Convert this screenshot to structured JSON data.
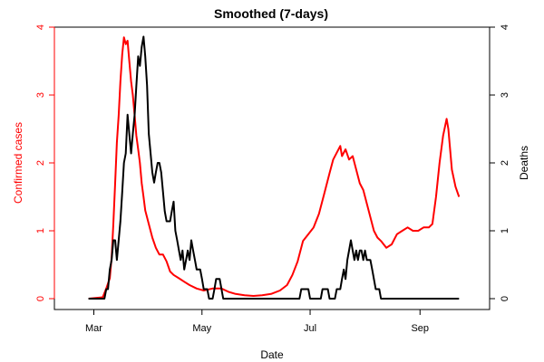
{
  "chart_data": {
    "type": "line",
    "title": "Smoothed (7-days)",
    "xlabel": "Date",
    "ylabel_left": "Confirmed cases",
    "ylabel_right": "Deaths",
    "x_ticks": [
      "Mar",
      "May",
      "Jul",
      "Sep"
    ],
    "x_tick_dates": [
      "2020-03-01",
      "2020-05-01",
      "2020-07-01",
      "2020-09-01"
    ],
    "x_range": [
      "2020-02-19",
      "2020-09-29"
    ],
    "ylim_left": [
      0,
      4
    ],
    "ylim_right": [
      0,
      4
    ],
    "yticks_left": [
      "0",
      "1",
      "2",
      "3",
      "4"
    ],
    "yticks_right": [
      "0",
      "1",
      "2",
      "3",
      "4"
    ],
    "colors": {
      "confirmed": "#ff0000",
      "deaths": "#000000",
      "axis_left": "#ff0000",
      "axis_right": "#000000"
    },
    "series": [
      {
        "name": "Confirmed cases",
        "axis": "left",
        "points": [
          [
            "2020-02-27",
            0
          ],
          [
            "2020-03-06",
            0.02
          ],
          [
            "2020-03-08",
            0.15
          ],
          [
            "2020-03-10",
            0.3
          ],
          [
            "2020-03-11",
            0.6
          ],
          [
            "2020-03-12",
            1.1
          ],
          [
            "2020-03-13",
            1.7
          ],
          [
            "2020-03-14",
            2.3
          ],
          [
            "2020-03-15",
            2.7
          ],
          [
            "2020-03-16",
            3.2
          ],
          [
            "2020-03-17",
            3.6
          ],
          [
            "2020-03-18",
            3.85
          ],
          [
            "2020-03-19",
            3.75
          ],
          [
            "2020-03-20",
            3.8
          ],
          [
            "2020-03-21",
            3.5
          ],
          [
            "2020-03-22",
            3.2
          ],
          [
            "2020-03-23",
            3.0
          ],
          [
            "2020-03-24",
            2.7
          ],
          [
            "2020-03-25",
            2.4
          ],
          [
            "2020-03-26",
            2.2
          ],
          [
            "2020-03-27",
            2.0
          ],
          [
            "2020-03-28",
            1.7
          ],
          [
            "2020-03-29",
            1.5
          ],
          [
            "2020-03-30",
            1.3
          ],
          [
            "2020-04-01",
            1.1
          ],
          [
            "2020-04-03",
            0.9
          ],
          [
            "2020-04-05",
            0.75
          ],
          [
            "2020-04-07",
            0.65
          ],
          [
            "2020-04-09",
            0.65
          ],
          [
            "2020-04-11",
            0.55
          ],
          [
            "2020-04-13",
            0.4
          ],
          [
            "2020-04-15",
            0.35
          ],
          [
            "2020-04-18",
            0.3
          ],
          [
            "2020-04-21",
            0.25
          ],
          [
            "2020-04-24",
            0.2
          ],
          [
            "2020-04-28",
            0.15
          ],
          [
            "2020-05-02",
            0.12
          ],
          [
            "2020-05-07",
            0.15
          ],
          [
            "2020-05-12",
            0.15
          ],
          [
            "2020-05-16",
            0.1
          ],
          [
            "2020-05-20",
            0.07
          ],
          [
            "2020-05-25",
            0.05
          ],
          [
            "2020-05-30",
            0.04
          ],
          [
            "2020-06-04",
            0.05
          ],
          [
            "2020-06-09",
            0.07
          ],
          [
            "2020-06-14",
            0.12
          ],
          [
            "2020-06-18",
            0.2
          ],
          [
            "2020-06-21",
            0.35
          ],
          [
            "2020-06-24",
            0.55
          ],
          [
            "2020-06-27",
            0.85
          ],
          [
            "2020-06-30",
            0.95
          ],
          [
            "2020-07-03",
            1.05
          ],
          [
            "2020-07-06",
            1.25
          ],
          [
            "2020-07-09",
            1.55
          ],
          [
            "2020-07-12",
            1.85
          ],
          [
            "2020-07-14",
            2.05
          ],
          [
            "2020-07-16",
            2.15
          ],
          [
            "2020-07-18",
            2.25
          ],
          [
            "2020-07-19",
            2.1
          ],
          [
            "2020-07-21",
            2.2
          ],
          [
            "2020-07-23",
            2.05
          ],
          [
            "2020-07-25",
            2.1
          ],
          [
            "2020-07-27",
            1.9
          ],
          [
            "2020-07-29",
            1.7
          ],
          [
            "2020-07-31",
            1.6
          ],
          [
            "2020-08-02",
            1.4
          ],
          [
            "2020-08-04",
            1.2
          ],
          [
            "2020-08-06",
            1.0
          ],
          [
            "2020-08-08",
            0.9
          ],
          [
            "2020-08-10",
            0.85
          ],
          [
            "2020-08-13",
            0.75
          ],
          [
            "2020-08-16",
            0.8
          ],
          [
            "2020-08-19",
            0.95
          ],
          [
            "2020-08-22",
            1.0
          ],
          [
            "2020-08-25",
            1.05
          ],
          [
            "2020-08-28",
            1.0
          ],
          [
            "2020-08-31",
            1.0
          ],
          [
            "2020-09-03",
            1.05
          ],
          [
            "2020-09-06",
            1.05
          ],
          [
            "2020-09-08",
            1.1
          ],
          [
            "2020-09-10",
            1.5
          ],
          [
            "2020-09-12",
            2.0
          ],
          [
            "2020-09-14",
            2.4
          ],
          [
            "2020-09-16",
            2.65
          ],
          [
            "2020-09-17",
            2.5
          ],
          [
            "2020-09-19",
            1.9
          ],
          [
            "2020-09-21",
            1.65
          ],
          [
            "2020-09-23",
            1.5
          ]
        ]
      },
      {
        "name": "Deaths",
        "axis": "right",
        "points": [
          [
            "2020-02-27",
            0
          ],
          [
            "2020-03-07",
            0
          ],
          [
            "2020-03-08",
            0.14
          ],
          [
            "2020-03-09",
            0.14
          ],
          [
            "2020-03-10",
            0.43
          ],
          [
            "2020-03-11",
            0.57
          ],
          [
            "2020-03-12",
            0.86
          ],
          [
            "2020-03-13",
            0.86
          ],
          [
            "2020-03-14",
            0.57
          ],
          [
            "2020-03-15",
            0.86
          ],
          [
            "2020-03-16",
            1.14
          ],
          [
            "2020-03-17",
            1.57
          ],
          [
            "2020-03-18",
            2.0
          ],
          [
            "2020-03-19",
            2.14
          ],
          [
            "2020-03-20",
            2.71
          ],
          [
            "2020-03-21",
            2.43
          ],
          [
            "2020-03-22",
            2.14
          ],
          [
            "2020-03-23",
            2.43
          ],
          [
            "2020-03-24",
            2.71
          ],
          [
            "2020-03-25",
            3.14
          ],
          [
            "2020-03-26",
            3.57
          ],
          [
            "2020-03-27",
            3.43
          ],
          [
            "2020-03-28",
            3.71
          ],
          [
            "2020-03-29",
            3.86
          ],
          [
            "2020-03-30",
            3.57
          ],
          [
            "2020-03-31",
            3.14
          ],
          [
            "2020-04-01",
            2.43
          ],
          [
            "2020-04-02",
            2.14
          ],
          [
            "2020-04-03",
            1.86
          ],
          [
            "2020-04-04",
            1.71
          ],
          [
            "2020-04-05",
            1.86
          ],
          [
            "2020-04-06",
            2.0
          ],
          [
            "2020-04-07",
            2.0
          ],
          [
            "2020-04-08",
            1.86
          ],
          [
            "2020-04-09",
            1.57
          ],
          [
            "2020-04-10",
            1.29
          ],
          [
            "2020-04-11",
            1.14
          ],
          [
            "2020-04-13",
            1.14
          ],
          [
            "2020-04-14",
            1.29
          ],
          [
            "2020-04-15",
            1.43
          ],
          [
            "2020-04-16",
            1.0
          ],
          [
            "2020-04-17",
            0.86
          ],
          [
            "2020-04-18",
            0.71
          ],
          [
            "2020-04-19",
            0.57
          ],
          [
            "2020-04-20",
            0.71
          ],
          [
            "2020-04-21",
            0.43
          ],
          [
            "2020-04-22",
            0.57
          ],
          [
            "2020-04-23",
            0.71
          ],
          [
            "2020-04-24",
            0.57
          ],
          [
            "2020-04-25",
            0.86
          ],
          [
            "2020-04-26",
            0.71
          ],
          [
            "2020-04-27",
            0.57
          ],
          [
            "2020-04-28",
            0.43
          ],
          [
            "2020-04-30",
            0.43
          ],
          [
            "2020-05-01",
            0.29
          ],
          [
            "2020-05-02",
            0.14
          ],
          [
            "2020-05-04",
            0.14
          ],
          [
            "2020-05-05",
            0
          ],
          [
            "2020-05-07",
            0
          ],
          [
            "2020-05-08",
            0.14
          ],
          [
            "2020-05-09",
            0.29
          ],
          [
            "2020-05-11",
            0.29
          ],
          [
            "2020-05-12",
            0.14
          ],
          [
            "2020-05-13",
            0
          ],
          [
            "2020-06-25",
            0
          ],
          [
            "2020-06-26",
            0.14
          ],
          [
            "2020-06-30",
            0.14
          ],
          [
            "2020-07-01",
            0
          ],
          [
            "2020-07-07",
            0
          ],
          [
            "2020-07-08",
            0.14
          ],
          [
            "2020-07-11",
            0.14
          ],
          [
            "2020-07-12",
            0
          ],
          [
            "2020-07-15",
            0
          ],
          [
            "2020-07-16",
            0.14
          ],
          [
            "2020-07-18",
            0.14
          ],
          [
            "2020-07-19",
            0.29
          ],
          [
            "2020-07-20",
            0.43
          ],
          [
            "2020-07-21",
            0.29
          ],
          [
            "2020-07-22",
            0.57
          ],
          [
            "2020-07-23",
            0.71
          ],
          [
            "2020-07-24",
            0.86
          ],
          [
            "2020-07-25",
            0.71
          ],
          [
            "2020-07-26",
            0.57
          ],
          [
            "2020-07-27",
            0.71
          ],
          [
            "2020-07-28",
            0.57
          ],
          [
            "2020-07-29",
            0.71
          ],
          [
            "2020-07-30",
            0.71
          ],
          [
            "2020-07-31",
            0.57
          ],
          [
            "2020-08-01",
            0.71
          ],
          [
            "2020-08-02",
            0.57
          ],
          [
            "2020-08-04",
            0.57
          ],
          [
            "2020-08-05",
            0.43
          ],
          [
            "2020-08-06",
            0.29
          ],
          [
            "2020-08-07",
            0.14
          ],
          [
            "2020-08-09",
            0.14
          ],
          [
            "2020-08-10",
            0
          ],
          [
            "2020-09-23",
            0
          ]
        ]
      }
    ]
  }
}
